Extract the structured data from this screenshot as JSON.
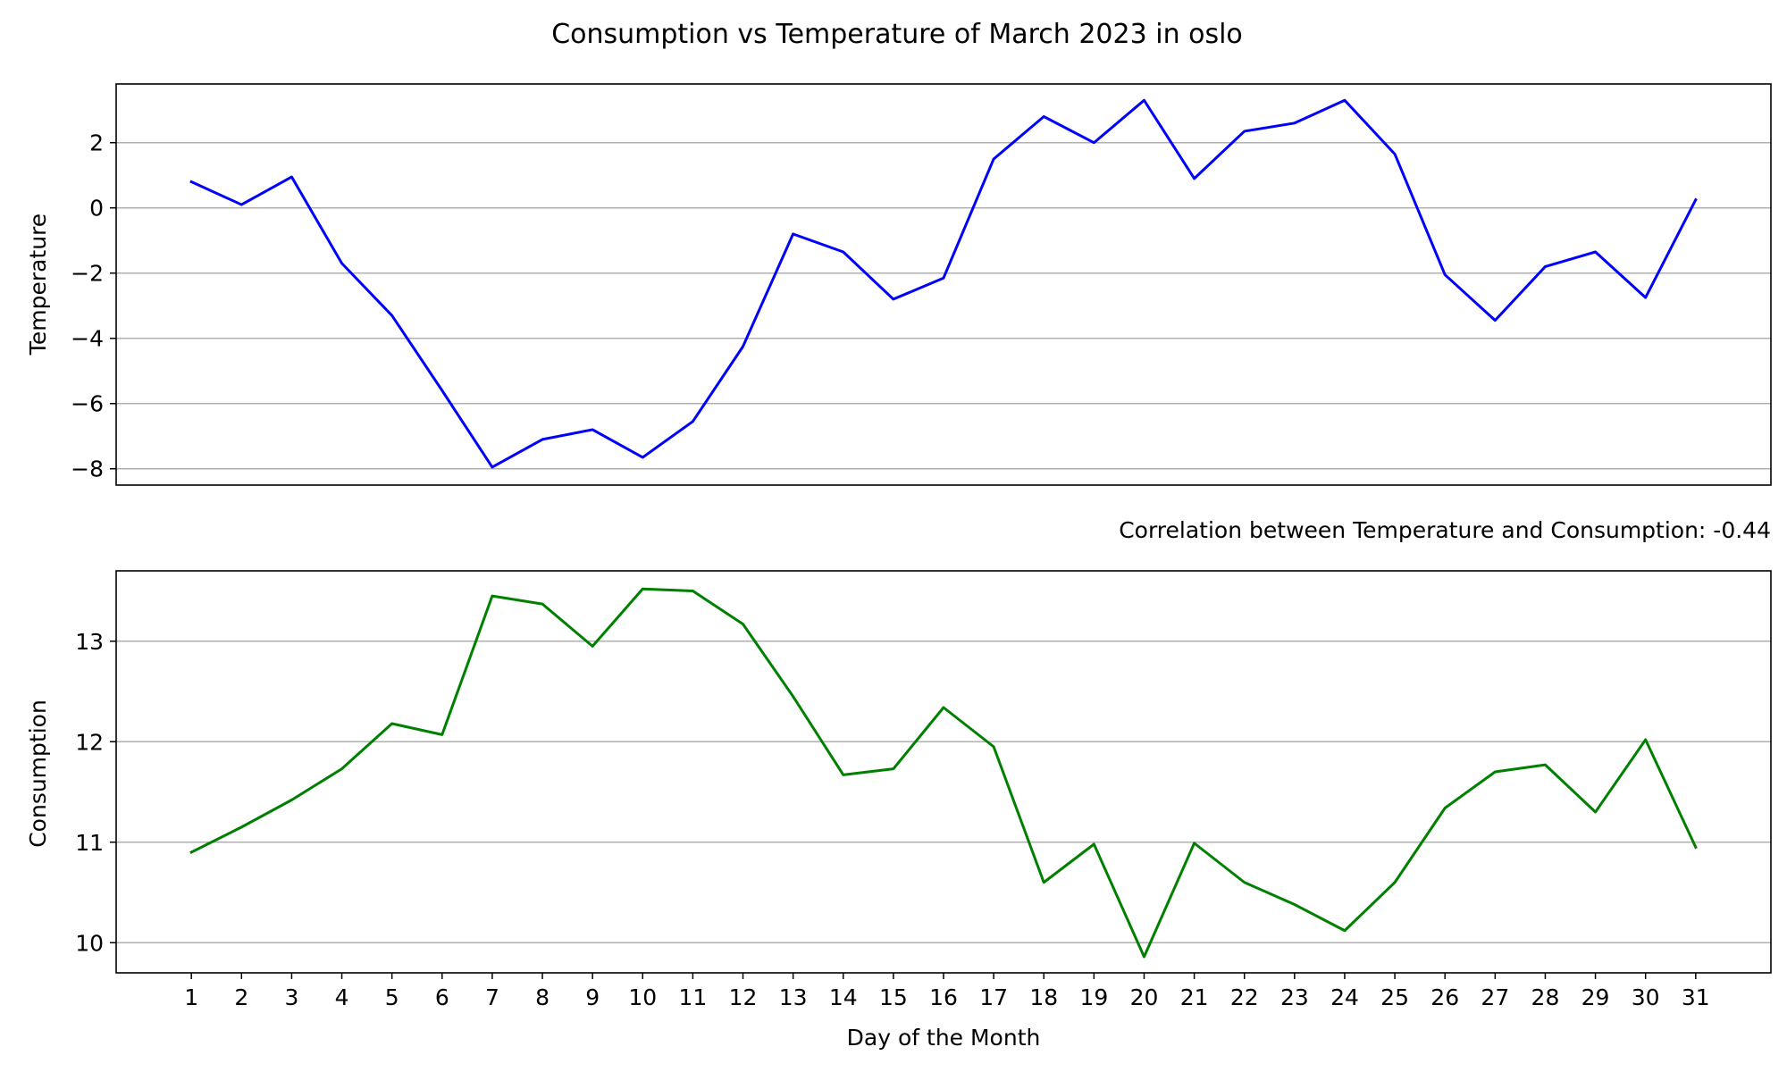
{
  "chart_data": {
    "type": "line",
    "title": "Consumption vs Temperature of March 2023 in oslo",
    "annotation": "Correlation between Temperature and Consumption: -0.44",
    "xlabel": "Day of the Month",
    "x": [
      1,
      2,
      3,
      4,
      5,
      6,
      7,
      8,
      9,
      10,
      11,
      12,
      13,
      14,
      15,
      16,
      17,
      18,
      19,
      20,
      21,
      22,
      23,
      24,
      25,
      26,
      27,
      28,
      29,
      30,
      31
    ],
    "xlim": [
      -0.5,
      32.5
    ],
    "grid": "horizontal",
    "legend": "none",
    "panels": [
      {
        "id": "temperature",
        "ylabel": "Temperature",
        "color": "#0000ff",
        "ylim": [
          -8.5,
          3.8
        ],
        "yticks": [
          -8,
          -6,
          -4,
          -2,
          0,
          2
        ],
        "ytick_labels": [
          "−8",
          "−6",
          "−4",
          "−2",
          "0",
          "2"
        ],
        "values": [
          0.8,
          0.1,
          0.95,
          -1.7,
          -3.3,
          -5.6,
          -7.95,
          -7.1,
          -6.8,
          -7.65,
          -6.55,
          -4.25,
          -0.8,
          -1.35,
          -2.8,
          -2.15,
          1.5,
          2.8,
          2.0,
          3.3,
          0.9,
          2.35,
          2.6,
          3.3,
          1.65,
          -2.05,
          -3.45,
          -1.8,
          -1.35,
          -2.75,
          0.25
        ]
      },
      {
        "id": "consumption",
        "ylabel": "Consumption",
        "color": "#008000",
        "ylim": [
          9.7,
          13.7
        ],
        "yticks": [
          10,
          11,
          12,
          13
        ],
        "ytick_labels": [
          "10",
          "11",
          "12",
          "13"
        ],
        "values": [
          10.9,
          11.15,
          11.42,
          11.73,
          12.18,
          12.07,
          13.45,
          13.37,
          12.95,
          13.52,
          13.5,
          13.17,
          12.45,
          11.67,
          11.73,
          12.34,
          11.95,
          10.6,
          10.98,
          9.86,
          10.99,
          10.6,
          10.38,
          10.12,
          10.6,
          11.34,
          11.7,
          11.77,
          11.3,
          12.02,
          10.95
        ]
      }
    ]
  }
}
